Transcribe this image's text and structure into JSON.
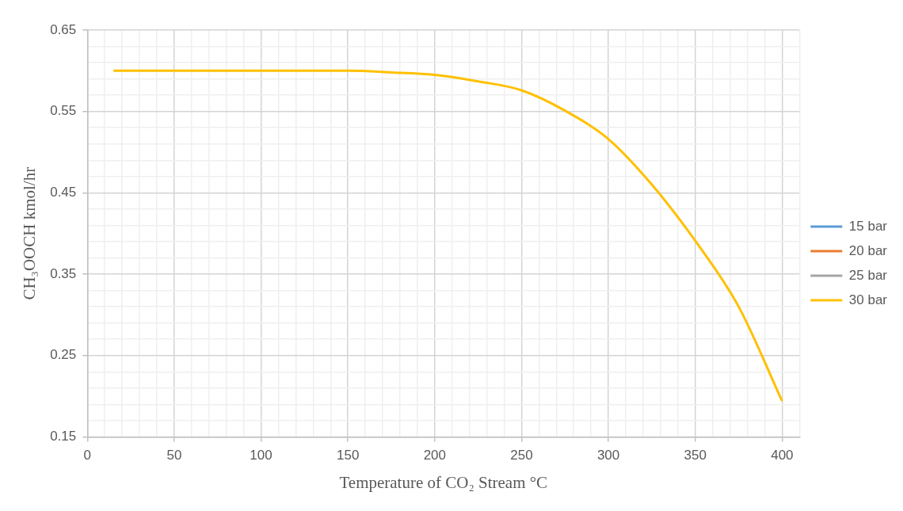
{
  "chart_data": {
    "type": "line",
    "xlabel": "Temperature of CO₂ Stream °C",
    "ylabel": "CH₃OOCH kmol/hr",
    "x": [
      15,
      50,
      100,
      150,
      175,
      200,
      225,
      250,
      275,
      300,
      325,
      350,
      375,
      400
    ],
    "series": [
      {
        "name": "15 bar",
        "color": "#5b9bd5",
        "values": [
          null,
          null,
          null,
          null,
          null,
          null,
          null,
          null,
          null,
          null,
          null,
          null,
          null,
          null
        ]
      },
      {
        "name": "20 bar",
        "color": "#ed7d31",
        "values": [
          null,
          null,
          null,
          null,
          null,
          null,
          null,
          null,
          null,
          null,
          null,
          null,
          null,
          null
        ]
      },
      {
        "name": "25 bar",
        "color": "#a5a5a5",
        "values": [
          null,
          null,
          null,
          null,
          null,
          null,
          null,
          null,
          null,
          null,
          null,
          null,
          null,
          null
        ]
      },
      {
        "name": "30 bar",
        "color": "#ffc000",
        "values": [
          0.6,
          0.6,
          0.6,
          0.6,
          0.598,
          0.595,
          0.587,
          0.576,
          0.551,
          0.516,
          0.46,
          0.391,
          0.31,
          0.194
        ]
      }
    ],
    "xlim": [
      0,
      410
    ],
    "xticks": [
      0,
      {
        "value": 10,
        "label": null
      },
      {
        "value": 20,
        "label": null
      },
      {
        "value": 30,
        "label": null
      },
      {
        "value": 40,
        "label": null
      },
      50,
      {
        "value": 60,
        "label": null
      },
      {
        "value": 70,
        "label": null
      },
      {
        "value": 80,
        "label": null
      },
      {
        "value": 90,
        "label": null
      },
      100,
      {
        "value": 110,
        "label": null
      },
      {
        "value": 120,
        "label": null
      },
      {
        "value": 130,
        "label": null
      },
      {
        "value": 140,
        "label": null
      },
      150,
      {
        "value": 160,
        "label": null
      },
      {
        "value": 170,
        "label": null
      },
      {
        "value": 180,
        "label": null
      },
      {
        "value": 190,
        "label": null
      },
      200,
      {
        "value": 210,
        "label": null
      },
      {
        "value": 220,
        "label": null
      },
      {
        "value": 230,
        "label": null
      },
      {
        "value": 240,
        "label": null
      },
      250,
      {
        "value": 260,
        "label": null
      },
      {
        "value": 270,
        "label": null
      },
      {
        "value": 280,
        "label": null
      },
      {
        "value": 290,
        "label": null
      },
      300,
      {
        "value": 310,
        "label": null
      },
      {
        "value": 320,
        "label": null
      },
      {
        "value": 330,
        "label": null
      },
      {
        "value": 340,
        "label": null
      },
      350,
      {
        "value": 360,
        "label": null
      },
      {
        "value": 370,
        "label": null
      },
      {
        "value": 380,
        "label": null
      },
      {
        "value": 390,
        "label": null
      },
      400,
      {
        "value": 410,
        "label": null
      }
    ],
    "ylim": [
      0.15,
      0.65
    ],
    "yticks": [
      0.15,
      {
        "value": 0.17,
        "label": null
      },
      {
        "value": 0.19,
        "label": null
      },
      {
        "value": 0.21,
        "label": null
      },
      {
        "value": 0.23,
        "label": null
      },
      0.25,
      {
        "value": 0.27,
        "label": null
      },
      {
        "value": 0.29,
        "label": null
      },
      {
        "value": 0.31,
        "label": null
      },
      {
        "value": 0.33,
        "label": null
      },
      0.35,
      {
        "value": 0.37,
        "label": null
      },
      {
        "value": 0.39,
        "label": null
      },
      {
        "value": 0.41,
        "label": null
      },
      {
        "value": 0.43,
        "label": null
      },
      0.45,
      {
        "value": 0.47,
        "label": null
      },
      {
        "value": 0.49,
        "label": null
      },
      {
        "value": 0.51,
        "label": null
      },
      {
        "value": 0.53,
        "label": null
      },
      0.55,
      {
        "value": 0.57,
        "label": null
      },
      {
        "value": 0.59,
        "label": null
      },
      {
        "value": 0.61,
        "label": null
      },
      {
        "value": 0.63,
        "label": null
      },
      0.65
    ],
    "grid": true,
    "legend": "right",
    "marker": "none",
    "line_style": "solid"
  }
}
